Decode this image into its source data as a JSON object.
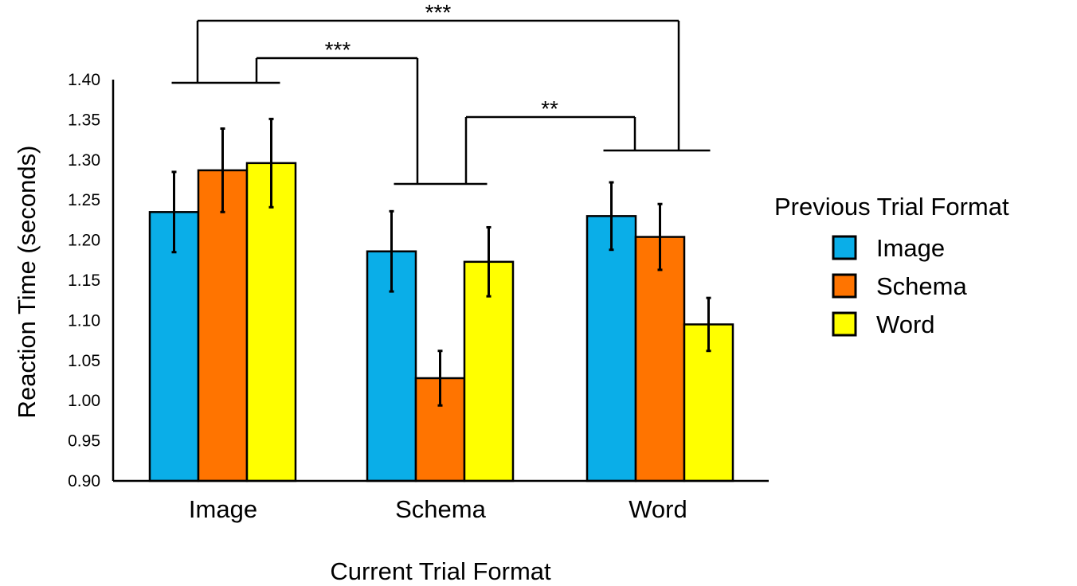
{
  "chart_data": {
    "type": "bar",
    "xlabel": "Current Trial Format",
    "ylabel": "Reaction Time (seconds)",
    "ylim": [
      0.9,
      1.4
    ],
    "yticks": [
      "0.90",
      "0.95",
      "1.00",
      "1.05",
      "1.10",
      "1.15",
      "1.20",
      "1.25",
      "1.30",
      "1.35",
      "1.40"
    ],
    "categories": [
      "Image",
      "Schema",
      "Word"
    ],
    "legend": {
      "title": "Previous Trial Format",
      "placement": "right"
    },
    "series": [
      {
        "name": "Image",
        "color": "#0aaee8",
        "values": [
          1.235,
          1.186,
          1.23
        ],
        "errors": [
          0.05,
          0.05,
          0.042
        ]
      },
      {
        "name": "Schema",
        "color": "#ff7400",
        "values": [
          1.287,
          1.028,
          1.204
        ],
        "errors": [
          0.052,
          0.034,
          0.041
        ]
      },
      {
        "name": "Word",
        "color": "#ffff00",
        "values": [
          1.296,
          1.173,
          1.095
        ],
        "errors": [
          0.055,
          0.043,
          0.033
        ]
      }
    ],
    "significance": [
      {
        "label": "***",
        "between": [
          "Image",
          "Word"
        ]
      },
      {
        "label": "***",
        "between": [
          "Image",
          "Schema"
        ]
      },
      {
        "label": "**",
        "between": [
          "Schema",
          "Word"
        ]
      }
    ],
    "grid": false
  }
}
